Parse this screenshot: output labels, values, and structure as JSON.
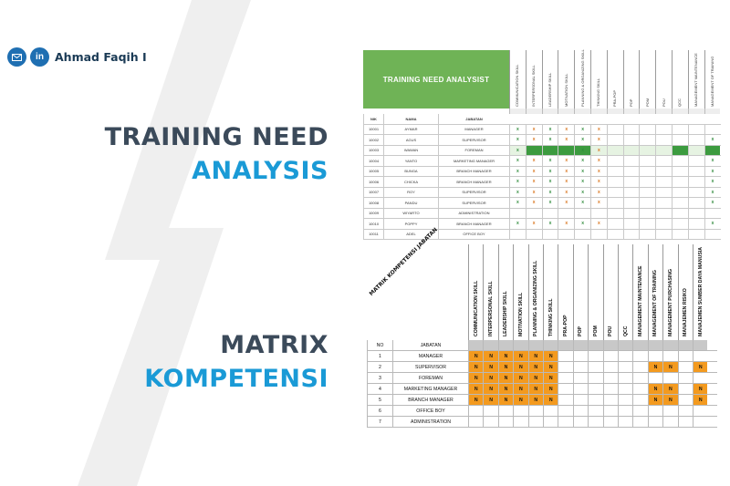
{
  "author": {
    "name": "Ahmad Faqih I",
    "icons": [
      "mail-icon",
      "linkedin-icon"
    ],
    "linkedin_text": "in"
  },
  "headings": {
    "tna_line1": "TRAINING NEED",
    "tna_line2": "ANALYSIS",
    "mk_line1": "MATRIX",
    "mk_line2": "KOMPETENSI"
  },
  "colors": {
    "dark": "#3b4a5a",
    "blue": "#1a9ad6",
    "green": "#6fb356",
    "orange": "#f39a1f"
  },
  "tna": {
    "title": "TRAINING NEED ANALYSIST",
    "headers": [
      "NIK",
      "NAMA",
      "JABATAN"
    ],
    "columns": [
      "COMMUNICATION SKILL",
      "INTERPERSONAL SKILL",
      "LEADERSHIP SKILL",
      "MOTIVATION SKILL",
      "PLANNING & ORGANIZING SKILL",
      "THINKING SKILL",
      "PRA-POP",
      "POP",
      "POM",
      "POU",
      "QCC",
      "MANAGEMENT MAINTENANCE",
      "MANAGEMENT OF TRAINING"
    ],
    "rows": [
      {
        "nik": "10001",
        "nama": "AYMAR",
        "jabatan": "MANAGER",
        "marks": [
          "x",
          "x",
          "x",
          "x",
          "x",
          "x",
          "",
          "",
          "",
          "",
          "",
          "",
          ""
        ],
        "fill": []
      },
      {
        "nik": "10002",
        "nama": "AGUS",
        "jabatan": "SUPERVISOR",
        "marks": [
          "x",
          "x",
          "x",
          "x",
          "x",
          "x",
          "",
          "",
          "",
          "",
          "",
          "",
          "x"
        ],
        "fill": []
      },
      {
        "nik": "10003",
        "nama": "WAWAN",
        "jabatan": "FOREMAN",
        "marks": [
          "x",
          "",
          "",
          "",
          "x",
          "x",
          "",
          "",
          "",
          "",
          "",
          "",
          ""
        ],
        "fill": [
          1,
          2,
          3,
          4,
          10,
          12,
          13
        ]
      },
      {
        "nik": "10004",
        "nama": "YANTO",
        "jabatan": "MARKETING MANAGER",
        "marks": [
          "x",
          "x",
          "x",
          "x",
          "x",
          "x",
          "",
          "",
          "",
          "",
          "",
          "",
          "x"
        ],
        "fill": []
      },
      {
        "nik": "10005",
        "nama": "BUNGA",
        "jabatan": "BRANCH MANAGER",
        "marks": [
          "x",
          "x",
          "x",
          "x",
          "x",
          "x",
          "",
          "",
          "",
          "",
          "",
          "",
          "x"
        ],
        "fill": []
      },
      {
        "nik": "10006",
        "nama": "CHICKA",
        "jabatan": "BRANCH MANAGER",
        "marks": [
          "x",
          "x",
          "x",
          "x",
          "x",
          "x",
          "",
          "",
          "",
          "",
          "",
          "",
          "x"
        ],
        "fill": []
      },
      {
        "nik": "10007",
        "nama": "ROY",
        "jabatan": "SUPERVISOR",
        "marks": [
          "x",
          "x",
          "x",
          "x",
          "x",
          "x",
          "",
          "",
          "",
          "",
          "",
          "",
          "x"
        ],
        "fill": []
      },
      {
        "nik": "10008",
        "nama": "PANDU",
        "jabatan": "SUPERVISOR",
        "marks": [
          "x",
          "x",
          "x",
          "x",
          "x",
          "x",
          "",
          "",
          "",
          "",
          "",
          "",
          "x"
        ],
        "fill": []
      },
      {
        "nik": "10009",
        "nama": "WIYARTO",
        "jabatan": "ADMINISTRATION",
        "marks": [
          "",
          "",
          "",
          "",
          "",
          "",
          "",
          "",
          "",
          "",
          "",
          "",
          ""
        ],
        "fill": []
      },
      {
        "nik": "10010",
        "nama": "POPPY",
        "jabatan": "BRANCH MANAGER",
        "marks": [
          "x",
          "x",
          "x",
          "x",
          "x",
          "x",
          "",
          "",
          "",
          "",
          "",
          "",
          "x"
        ],
        "fill": []
      },
      {
        "nik": "10011",
        "nama": "ADEL",
        "jabatan": "OFFICE BOY",
        "marks": [
          "",
          "",
          "",
          "",
          "",
          "",
          "",
          "",
          "",
          "",
          "",
          "",
          ""
        ],
        "fill": []
      }
    ]
  },
  "matrix": {
    "corner_label": "MATRIK KOMPETENSI JABATAN",
    "headers": [
      "NO",
      "JABATAN"
    ],
    "columns": [
      "COMMUNICATION SKILL",
      "INTERPERSONAL SKILL",
      "LEADERSHIP SKILL",
      "MOTIVATION SKILL",
      "PLANNING & ORGANIZING SKILL",
      "THINKING SKILL",
      "PRA-POP",
      "POP",
      "POM",
      "POU",
      "QCC",
      "MANAGEMENT MAINTENANCE",
      "MANAGEMENT OF TRAINING",
      "MANAGEMENT PURCHASING",
      "MANAJEMEN RISIKO",
      "MANAJEMEN SUMBER DAYA MANUSIA"
    ],
    "rows": [
      {
        "no": "1",
        "jabatan": "MANAGER",
        "cells": [
          "N",
          "N",
          "N",
          "N",
          "N",
          "N",
          "",
          "",
          "",
          "",
          "",
          "",
          "",
          "",
          "",
          ""
        ]
      },
      {
        "no": "2",
        "jabatan": "SUPERVISOR",
        "cells": [
          "N",
          "N",
          "N",
          "N",
          "N",
          "N",
          "",
          "",
          "",
          "",
          "",
          "",
          "N",
          "N",
          "",
          "N"
        ]
      },
      {
        "no": "3",
        "jabatan": "FOREMAN",
        "cells": [
          "N",
          "N",
          "N",
          "N",
          "N",
          "N",
          "",
          "",
          "",
          "",
          "",
          "",
          "",
          "",
          "",
          ""
        ]
      },
      {
        "no": "4",
        "jabatan": "MARKETING MANAGER",
        "cells": [
          "N",
          "N",
          "N",
          "N",
          "N",
          "N",
          "",
          "",
          "",
          "",
          "",
          "",
          "N",
          "N",
          "",
          "N"
        ]
      },
      {
        "no": "5",
        "jabatan": "BRANCH MANAGER",
        "cells": [
          "N",
          "N",
          "N",
          "N",
          "N",
          "N",
          "",
          "",
          "",
          "",
          "",
          "",
          "N",
          "N",
          "",
          "N"
        ]
      },
      {
        "no": "6",
        "jabatan": "OFFICE BOY",
        "cells": [
          "",
          "",
          "",
          "",
          "",
          "",
          "",
          "",
          "",
          "",
          "",
          "",
          "",
          "",
          "",
          ""
        ]
      },
      {
        "no": "7",
        "jabatan": "ADMINISTRATION",
        "cells": [
          "",
          "",
          "",
          "",
          "",
          "",
          "",
          "",
          "",
          "",
          "",
          "",
          "",
          "",
          "",
          ""
        ]
      }
    ]
  }
}
